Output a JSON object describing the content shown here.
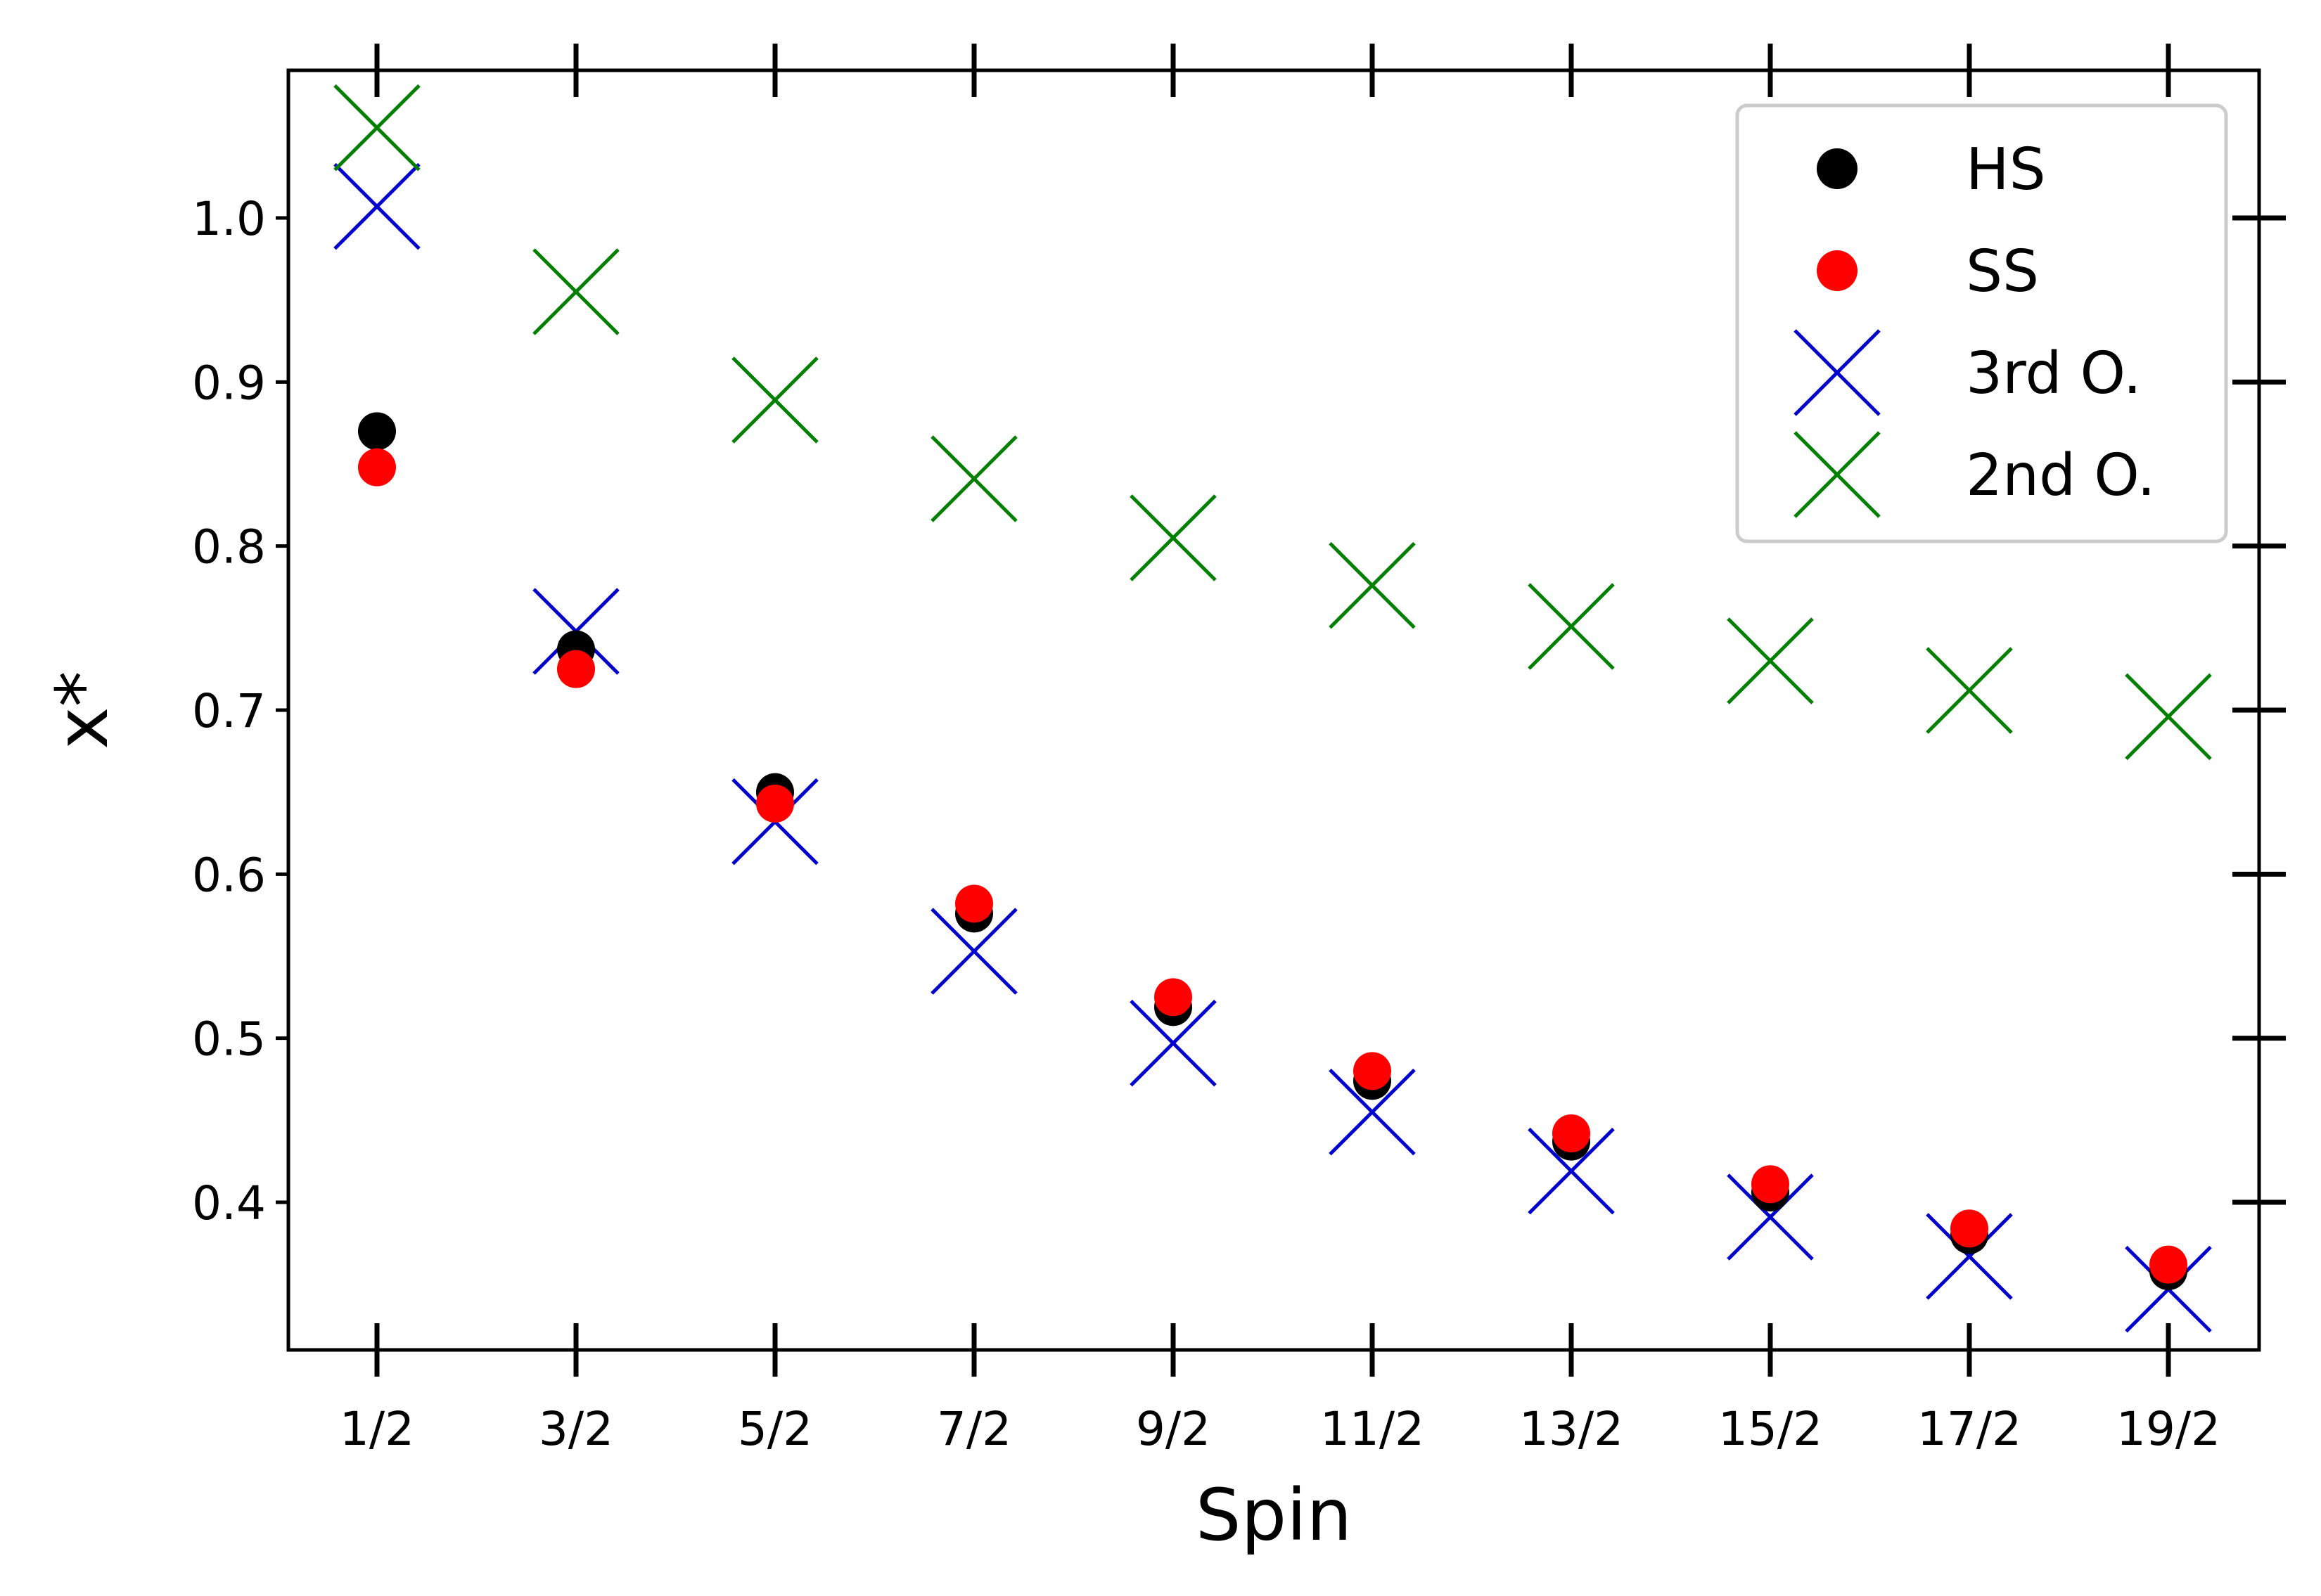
{
  "chart_data": {
    "type": "scatter",
    "title": "",
    "xlabel": "Spin",
    "ylabel": "x*",
    "categories": [
      "1/2",
      "3/2",
      "5/2",
      "7/2",
      "9/2",
      "11/2",
      "13/2",
      "15/2",
      "17/2",
      "19/2"
    ],
    "ylim": [
      0.31,
      1.09
    ],
    "yticks": [
      "0.4",
      "0.5",
      "0.6",
      "0.7",
      "0.8",
      "0.9",
      "1.0"
    ],
    "grid": false,
    "legend_position": "top-right",
    "series": [
      {
        "name": "HS",
        "marker": "circle",
        "color": "#000000",
        "values": [
          0.87,
          0.737,
          0.65,
          0.576,
          0.519,
          0.474,
          0.437,
          0.406,
          0.38,
          0.358
        ]
      },
      {
        "name": "SS",
        "marker": "circle",
        "color": "#ff0000",
        "values": [
          0.848,
          0.725,
          0.643,
          0.582,
          0.525,
          0.48,
          0.442,
          0.411,
          0.384,
          0.362
        ]
      },
      {
        "name": "3rd O.",
        "marker": "x",
        "color": "#0000cc",
        "values": [
          1.007,
          0.748,
          0.632,
          0.553,
          0.497,
          0.455,
          0.419,
          0.391,
          0.367,
          0.347
        ]
      },
      {
        "name": "2nd O.",
        "marker": "x",
        "color": "#007f00",
        "values": [
          1.055,
          0.955,
          0.889,
          0.841,
          0.805,
          0.776,
          0.751,
          0.73,
          0.712,
          0.696
        ]
      }
    ]
  }
}
